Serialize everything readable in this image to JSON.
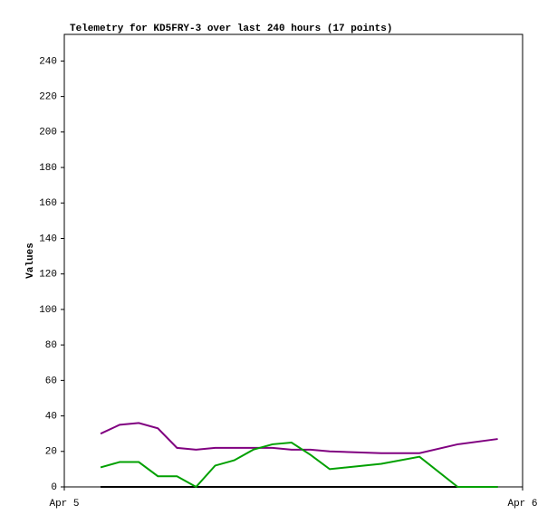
{
  "chart_data": {
    "type": "line",
    "title": "Telemetry for KD5FRY-3 over last 240 hours (17 points)",
    "y_label": "Values",
    "x": [
      1.9,
      2.9,
      3.9,
      4.9,
      5.9,
      6.9,
      7.9,
      8.9,
      9.9,
      10.9,
      11.9,
      12.9,
      13.9,
      16.6,
      18.6,
      20.6,
      22.7
    ],
    "xlim": [
      0,
      24
    ],
    "xticks": [
      {
        "value": 0,
        "label": "Apr 5"
      },
      {
        "value": 24,
        "label": "Apr 6"
      }
    ],
    "ylim": [
      0,
      255
    ],
    "yticks": [
      0,
      20,
      40,
      60,
      80,
      100,
      120,
      140,
      160,
      180,
      200,
      220,
      240
    ],
    "series": [
      {
        "color": "#000000",
        "values": [
          0,
          0,
          0,
          0,
          0,
          0,
          0,
          0,
          0,
          0,
          0,
          0,
          0,
          0,
          0,
          0,
          0
        ]
      },
      {
        "color": "#800080",
        "values": [
          30,
          35,
          36,
          33,
          22,
          21,
          22,
          22,
          22,
          22,
          21,
          21,
          20,
          19,
          19,
          24,
          27
        ]
      },
      {
        "color": "#00a000",
        "values": [
          11,
          14,
          14,
          6,
          6,
          0,
          12,
          15,
          21,
          24,
          25,
          18,
          10,
          13,
          17,
          0,
          0
        ]
      }
    ]
  }
}
